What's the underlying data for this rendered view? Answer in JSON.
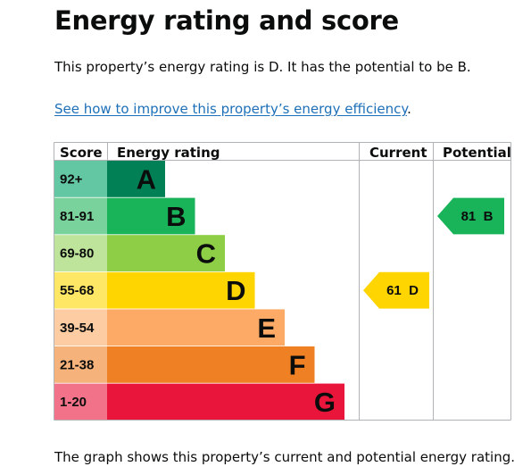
{
  "page": {
    "title": "Energy rating and score",
    "summary": "This property’s energy rating is D. It has the potential to be B.",
    "link_text": "See how to improve this property’s energy efficiency",
    "link_suffix": ".",
    "footer": "The graph shows this property’s current and potential energy rating."
  },
  "chart_data": {
    "type": "table",
    "headers": {
      "score": "Score",
      "rating": "Energy rating",
      "current": "Current",
      "potential": "Potential"
    },
    "bands": [
      {
        "letter": "A",
        "range": "92+",
        "color": "#008054",
        "score_color": "#64c7a3"
      },
      {
        "letter": "B",
        "range": "81-91",
        "color": "#19b459",
        "score_color": "#79d29c"
      },
      {
        "letter": "C",
        "range": "69-80",
        "color": "#8dce46",
        "score_color": "#bee39a"
      },
      {
        "letter": "D",
        "range": "55-68",
        "color": "#ffd500",
        "score_color": "#ffe766"
      },
      {
        "letter": "E",
        "range": "39-54",
        "color": "#fcaa65",
        "score_color": "#fdcca3"
      },
      {
        "letter": "F",
        "range": "21-38",
        "color": "#ef8023",
        "score_color": "#f5b27b"
      },
      {
        "letter": "G",
        "range": "1-20",
        "color": "#e9153b",
        "score_color": "#f27389"
      }
    ],
    "current": {
      "score": 61,
      "band": "D",
      "label": "61  D",
      "color": "#ffd500",
      "text_color": "#0b0c0c"
    },
    "potential": {
      "score": 81,
      "band": "B",
      "label": "81  B",
      "color": "#19b459",
      "text_color": "#0b0c0c"
    }
  }
}
